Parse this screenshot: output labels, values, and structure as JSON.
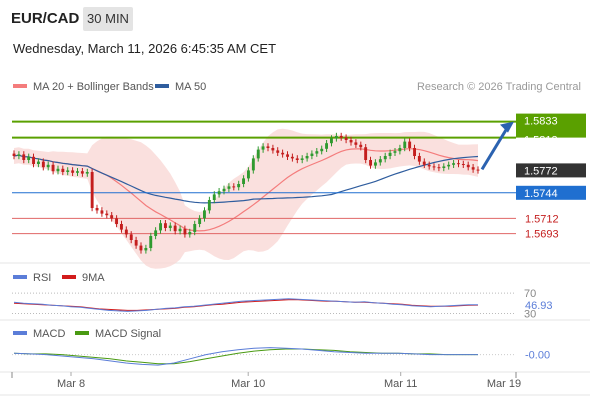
{
  "header": {
    "pair": "EUR/CAD",
    "timeframe": "30 MIN",
    "datetime": "Wednesday, March 11, 2026 6:45:35 AM CET",
    "credit": "Research © 2026 Trading Central"
  },
  "colors": {
    "ma20": "#f47c7c",
    "band_fill": "#f8d6d3",
    "ma50": "#2f5d9e",
    "up": "#2f9a2f",
    "down": "#c41e1e",
    "pivot": "#5aa000",
    "support": "#e06666",
    "current": "#333333",
    "ma50_box": "#1f6fd0",
    "arrow": "#2b62b0",
    "rsi": "#5b7dd8",
    "rsi_ma": "#d21c1c",
    "macd": "#5b7dd8",
    "macd_signal": "#4a9a12"
  },
  "chart_data": [
    {
      "type": "candlestick",
      "panel": "price",
      "legend": [
        {
          "name": "MA 20 + Bollinger Bands",
          "color": "#f47c7c"
        },
        {
          "name": "MA 50",
          "color": "#2f5d9e"
        }
      ],
      "x_labels": [
        "Mar 8",
        "Mar 10",
        "Mar 11",
        "Mar 19"
      ],
      "x_label_pos": [
        0.12,
        0.48,
        0.79,
        1.0
      ],
      "ylim": [
        1.566,
        1.586
      ],
      "levels": [
        {
          "value": 1.5833,
          "label": "1.5833",
          "kind": "pivot"
        },
        {
          "value": 1.5813,
          "label": "1.5813",
          "kind": "pivot"
        },
        {
          "value": 1.5772,
          "label": "1.5772",
          "kind": "current"
        },
        {
          "value": 1.5744,
          "label": "1.5744",
          "kind": "ma50"
        },
        {
          "value": 1.5712,
          "label": "1.5712",
          "kind": "support"
        },
        {
          "value": 1.5693,
          "label": "1.5693",
          "kind": "support"
        }
      ],
      "close": [
        1.579,
        1.5792,
        1.5785,
        1.5789,
        1.578,
        1.5783,
        1.5776,
        1.5779,
        1.5771,
        1.5774,
        1.577,
        1.5772,
        1.5769,
        1.5771,
        1.5768,
        1.577,
        1.5725,
        1.5722,
        1.5718,
        1.5716,
        1.5712,
        1.5705,
        1.5698,
        1.5692,
        1.5685,
        1.5678,
        1.5672,
        1.5675,
        1.569,
        1.5697,
        1.5706,
        1.57,
        1.5703,
        1.5696,
        1.5699,
        1.5692,
        1.5695,
        1.5705,
        1.5712,
        1.5722,
        1.5735,
        1.5742,
        1.5746,
        1.5749,
        1.5752,
        1.5751,
        1.5755,
        1.5762,
        1.5772,
        1.5787,
        1.5798,
        1.5802,
        1.58,
        1.5797,
        1.5794,
        1.5792,
        1.5789,
        1.5787,
        1.5785,
        1.5787,
        1.579,
        1.5793,
        1.5796,
        1.5799,
        1.5806,
        1.5812,
        1.5815,
        1.5813,
        1.581,
        1.5807,
        1.5804,
        1.5801,
        1.5785,
        1.5778,
        1.5782,
        1.5786,
        1.579,
        1.5794,
        1.5796,
        1.58,
        1.5808,
        1.58,
        1.579,
        1.5783,
        1.5779,
        1.5777,
        1.5776,
        1.5775,
        1.5777,
        1.5779,
        1.5781,
        1.578,
        1.5779,
        1.5776,
        1.5773,
        1.5772
      ]
    },
    {
      "type": "line",
      "panel": "rsi",
      "legend": [
        {
          "name": "RSI",
          "color": "#5b7dd8"
        },
        {
          "name": "9MA",
          "color": "#d21c1c"
        }
      ],
      "ylim": [
        25,
        80
      ],
      "levels": [
        70,
        30
      ],
      "level_labels": [
        "70",
        "30"
      ],
      "last_label": "46.93",
      "rsi": [
        52,
        50,
        49,
        48,
        46,
        45,
        43,
        42,
        40,
        38,
        36,
        35,
        34,
        35,
        36,
        38,
        40,
        41,
        43,
        44,
        46,
        48,
        50,
        52,
        54,
        55,
        56,
        57,
        58,
        59,
        58,
        57,
        56,
        55,
        54,
        53,
        52,
        53,
        51,
        50,
        48,
        47,
        45,
        44,
        43,
        44,
        45,
        46,
        47,
        46.93
      ],
      "ma": [
        50,
        49,
        48,
        47,
        46,
        45,
        44,
        43,
        41,
        39,
        38,
        37,
        36,
        36,
        37,
        38,
        39,
        40,
        42,
        43,
        45,
        47,
        48,
        50,
        52,
        53,
        54,
        55,
        56,
        57,
        57,
        56,
        55,
        54,
        54,
        53,
        52,
        52,
        51,
        50,
        49,
        48,
        46,
        45,
        44,
        44,
        44,
        45,
        46,
        46.5
      ]
    },
    {
      "type": "line",
      "panel": "macd",
      "legend": [
        {
          "name": "MACD",
          "color": "#5b7dd8"
        },
        {
          "name": "MACD Signal",
          "color": "#4a9a12"
        }
      ],
      "ylim": [
        -0.0022,
        0.0018
      ],
      "last_label": "-0.00",
      "macd": [
        0.0002,
        0.0001,
        0.0,
        -0.0002,
        -0.0004,
        -0.0006,
        -0.0009,
        -0.0012,
        -0.0014,
        -0.0015,
        -0.0012,
        -0.0006,
        0.0,
        0.0004,
        0.0007,
        0.0009,
        0.001,
        0.0009,
        0.0008,
        0.0006,
        0.0004,
        0.0003,
        0.0002,
        0.0002,
        0.0002,
        0.0001,
        0.0,
        0.0,
        0.0,
        0.0
      ],
      "signal": [
        0.0002,
        0.0001,
        0.0001,
        0.0,
        -0.0002,
        -0.0004,
        -0.0006,
        -0.0009,
        -0.0011,
        -0.0013,
        -0.0013,
        -0.001,
        -0.0006,
        -0.0002,
        0.0002,
        0.0005,
        0.0007,
        0.0008,
        0.0008,
        0.0007,
        0.0006,
        0.0004,
        0.0003,
        0.0002,
        0.0002,
        0.0001,
        0.0001,
        0.0,
        0.0,
        0.0
      ]
    }
  ]
}
